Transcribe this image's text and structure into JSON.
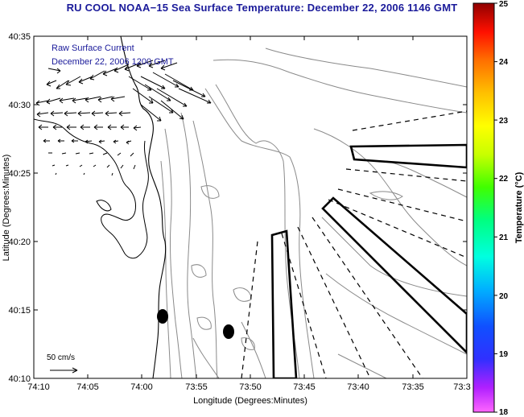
{
  "title": "RU COOL  NOAA−15  Sea Surface Temperature:  December 22, 2006 1146 GMT",
  "inset": {
    "line1": "Raw Surface Current",
    "line2": "December 22, 2006 1200 GMT"
  },
  "axes": {
    "xlabel": "Longitude (Degrees:Minutes)",
    "ylabel": "Latitude (Degrees:Minutes)",
    "xticks": [
      "74:10",
      "74:05",
      "74:00",
      "73:55",
      "73:50",
      "73:45",
      "73:40",
      "73:35",
      "73:3"
    ],
    "yticks": [
      "40:35",
      "40:30",
      "40:25",
      "40:20",
      "40:15",
      "40:10"
    ]
  },
  "colorbar": {
    "label": "Temperature (°C)",
    "ticks": [
      "25",
      "24",
      "23",
      "22",
      "21",
      "20",
      "19",
      "18"
    ],
    "min": 18,
    "max": 25
  },
  "scale": {
    "label": "50 cm/s"
  },
  "colors": {
    "title": "#1a1a9a",
    "inset_text": "#1a1a9a",
    "coast": "#000000",
    "bathymetry": "#808080"
  }
}
